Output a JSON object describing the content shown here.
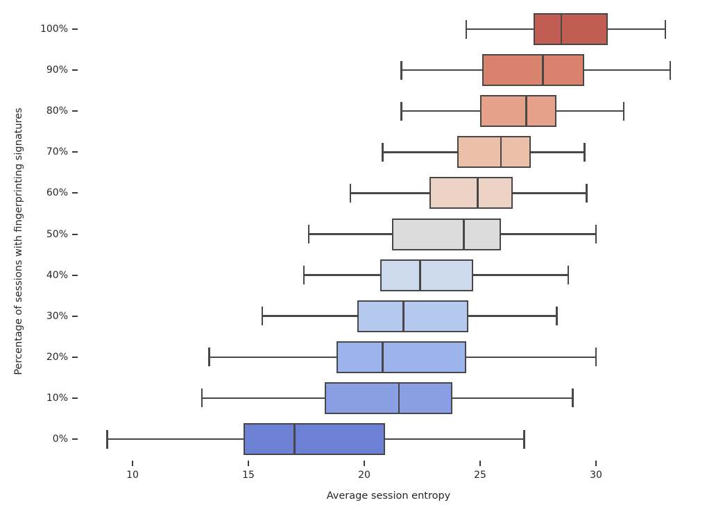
{
  "figure": {
    "background": "#ffffff",
    "box_edge_color": "#474747",
    "tick_color": "#3a3a3a",
    "text_color": "#262626"
  },
  "chart_data": {
    "type": "boxplot_horizontal",
    "title": "",
    "xlabel": "Average session entropy",
    "ylabel": "Percentage of sessions with fingerprinting signatures",
    "x_ticks": [
      10,
      15,
      20,
      25,
      30
    ],
    "x_tick_labels": [
      "10",
      "15",
      "20",
      "25",
      "30"
    ],
    "xlim": [
      7.7,
      34.8
    ],
    "grid": false,
    "legend": null,
    "orientation": "horizontal",
    "categories_top_to_bottom": [
      "100%",
      "90%",
      "80%",
      "70%",
      "60%",
      "50%",
      "40%",
      "30%",
      "20%",
      "10%",
      "0%"
    ],
    "series": [
      {
        "category": "100%",
        "whisker_low": 24.4,
        "q1": 27.3,
        "median": 28.5,
        "q3": 30.5,
        "whisker_high": 33.0,
        "color": "#c25d53"
      },
      {
        "category": "90%",
        "whisker_low": 21.6,
        "q1": 25.1,
        "median": 27.7,
        "q3": 29.5,
        "whisker_high": 33.2,
        "color": "#d9836e"
      },
      {
        "category": "80%",
        "whisker_low": 21.6,
        "q1": 25.0,
        "median": 27.0,
        "q3": 28.3,
        "whisker_high": 31.2,
        "color": "#e5a189"
      },
      {
        "category": "70%",
        "whisker_low": 20.8,
        "q1": 24.0,
        "median": 25.9,
        "q3": 27.2,
        "whisker_high": 29.5,
        "color": "#ecc0a8"
      },
      {
        "category": "60%",
        "whisker_low": 19.4,
        "q1": 22.8,
        "median": 24.9,
        "q3": 26.4,
        "whisker_high": 29.6,
        "color": "#ecd3c5"
      },
      {
        "category": "50%",
        "whisker_low": 17.6,
        "q1": 21.2,
        "median": 24.3,
        "q3": 25.9,
        "whisker_high": 30.0,
        "color": "#dcdcdc"
      },
      {
        "category": "40%",
        "whisker_low": 17.4,
        "q1": 20.7,
        "median": 22.4,
        "q3": 24.7,
        "whisker_high": 28.8,
        "color": "#cdd9ec"
      },
      {
        "category": "30%",
        "whisker_low": 15.6,
        "q1": 19.7,
        "median": 21.7,
        "q3": 24.5,
        "whisker_high": 28.3,
        "color": "#b5c8ee"
      },
      {
        "category": "20%",
        "whisker_low": 13.3,
        "q1": 18.8,
        "median": 20.8,
        "q3": 24.4,
        "whisker_high": 30.0,
        "color": "#9db3ec"
      },
      {
        "category": "10%",
        "whisker_low": 13.0,
        "q1": 18.3,
        "median": 21.5,
        "q3": 23.8,
        "whisker_high": 29.0,
        "color": "#8a9fe3"
      },
      {
        "category": "0%",
        "whisker_low": 8.9,
        "q1": 14.8,
        "median": 17.0,
        "q3": 20.9,
        "whisker_high": 26.9,
        "color": "#6c80d4"
      }
    ]
  }
}
